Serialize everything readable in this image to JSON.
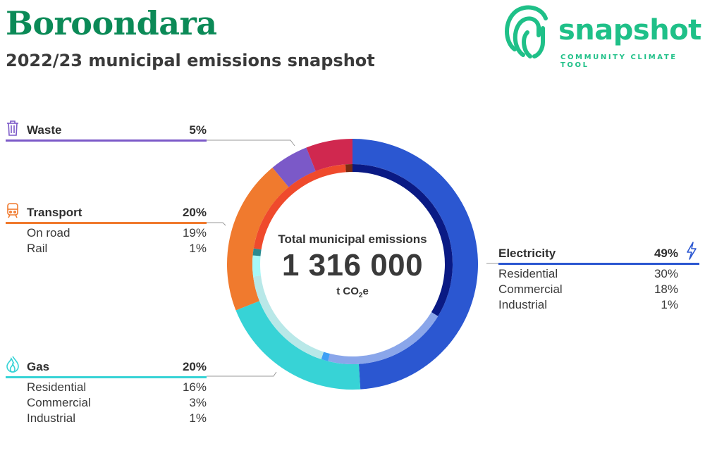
{
  "header": {
    "title": "Boroondara",
    "subtitle": "2022/23 municipal emissions snapshot"
  },
  "logo": {
    "word": "snapshot",
    "tagline": "COMMUNITY CLIMATE TOOL",
    "icon": "fingerprint-swirl-icon",
    "color": "#1fc088"
  },
  "center": {
    "label": "Total municipal emissions",
    "value": "1 316 000",
    "unit_prefix": "t CO",
    "unit_sub": "2",
    "unit_suffix": "e"
  },
  "sectors": {
    "waste": {
      "label": "Waste",
      "pct": "5%",
      "icon": "trash-bin-icon",
      "color": "#7b59c8"
    },
    "transport": {
      "label": "Transport",
      "pct": "20%",
      "icon": "train-icon",
      "color": "#f07a2e",
      "items": [
        {
          "label": "On road",
          "pct": "19%"
        },
        {
          "label": "Rail",
          "pct": "1%"
        }
      ]
    },
    "gas": {
      "label": "Gas",
      "pct": "20%",
      "icon": "flame-icon",
      "color": "#37d3d6",
      "items": [
        {
          "label": "Residential",
          "pct": "16%"
        },
        {
          "label": "Commercial",
          "pct": "3%"
        },
        {
          "label": "Industrial",
          "pct": "1%"
        }
      ]
    },
    "electricity": {
      "label": "Electricity",
      "pct": "49%",
      "icon": "lightning-bolt-icon",
      "color": "#2b57d1",
      "items": [
        {
          "label": "Residential",
          "pct": "30%"
        },
        {
          "label": "Commercial",
          "pct": "18%"
        },
        {
          "label": "Industrial",
          "pct": "1%"
        }
      ]
    }
  },
  "chart_data": {
    "type": "pie",
    "total": 1316000,
    "outer_ring": [
      {
        "name": "Electricity",
        "value": 49,
        "color": "#2b57d1"
      },
      {
        "name": "Gas",
        "value": 20,
        "color": "#37d3d6"
      },
      {
        "name": "Transport",
        "value": 20,
        "color": "#f07a2e"
      },
      {
        "name": "Waste",
        "value": 5,
        "color": "#7b59c8"
      },
      {
        "name": "",
        "value": 6,
        "color": "#d0284f"
      }
    ],
    "inner_ring": [
      {
        "name": "Electricity Residential",
        "value": 30,
        "color": "#0a1a84"
      },
      {
        "name": "Electricity Commercial",
        "value": 18,
        "color": "#8aa6ea"
      },
      {
        "name": "Electricity Industrial",
        "value": 1,
        "color": "#3ea0f5"
      },
      {
        "name": "Gas Residential",
        "value": 16,
        "color": "#b8e8e8"
      },
      {
        "name": "Gas Commercial",
        "value": 3,
        "color": "#a6f8f8"
      },
      {
        "name": "Gas Industrial",
        "value": 1,
        "color": "#2a8a90"
      },
      {
        "name": "Transport On road",
        "value": 19,
        "color": "#ef4a2c"
      },
      {
        "name": "Transport Rail",
        "value": 1,
        "color": "#7a2a12"
      }
    ]
  }
}
